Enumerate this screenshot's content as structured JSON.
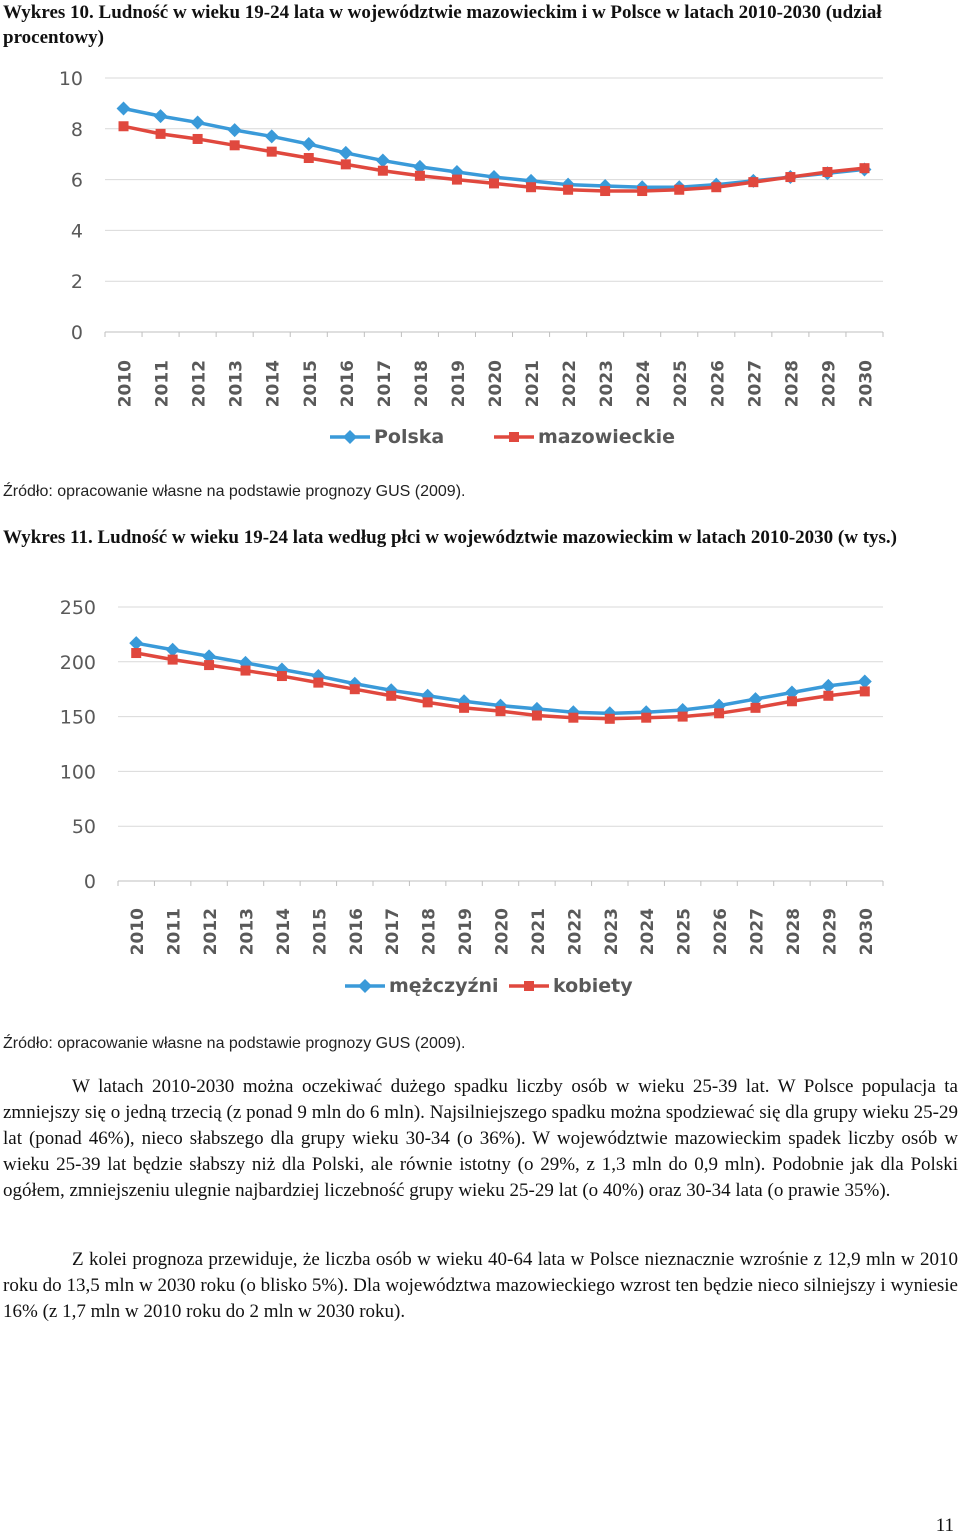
{
  "fig10": {
    "caption": "Wykres 10. Ludność w wieku 19-24 lata w województwie mazowieckim i w Polsce w latach 2010-2030 (udział procentowy)",
    "source": "Źródło: opracowanie własne na podstawie prognozy GUS (2009)."
  },
  "fig11": {
    "caption": "Wykres 11. Ludność w wieku 19-24 lata według płci w województwie mazowieckim w latach 2010-2030 (w tys.)",
    "source": "Źródło: opracowanie własne na podstawie prognozy GUS (2009)."
  },
  "body": {
    "p1": "W latach 2010-2030 można oczekiwać dużego spadku liczby osób w wieku 25-39 lat. W Polsce populacja ta zmniejszy się o jedną trzecią (z ponad 9 mln do 6 mln). Najsilniejszego spadku można spodziewać się dla grupy wieku 25-29 lat (ponad 46%), nieco słabszego dla grupy wieku 30-34 (o 36%). W województwie mazowieckim spadek liczby osób w wieku 25-39 lat będzie słabszy niż dla Polski, ale równie istotny (o 29%, z 1,3 mln do 0,9 mln). Podobnie jak dla Polski ogółem, zmniejszeniu ulegnie najbardziej liczebność grupy wieku 25-29 lat (o 40%) oraz 30-34 lata (o prawie 35%).",
    "p2": "Z kolei prognoza przewiduje, że liczba osób w wieku 40-64 lata w Polsce nieznacznie wzrośnie z 12,9 mln w 2010 roku do 13,5 mln w 2030 roku (o blisko 5%). Dla województwa mazowieckiego wzrost ten będzie nieco silniejszy i wyniesie 16% (z 1,7 mln w 2010 roku do 2 mln w 2030 roku)."
  },
  "page_number": "11",
  "colors": {
    "series_blue": "#3a9ad9",
    "series_red": "#e0483e",
    "grid": "#d9d9d9",
    "axis": "#bfbfbf",
    "tick_text": "#595959"
  },
  "chart_data": [
    {
      "type": "line",
      "title": "",
      "xlabel": "",
      "ylabel": "",
      "ylim": [
        0,
        10
      ],
      "yticks": [
        0,
        2,
        4,
        6,
        8,
        10
      ],
      "grid": true,
      "legend_position": "bottom",
      "categories": [
        "2010",
        "2011",
        "2012",
        "2013",
        "2014",
        "2015",
        "2016",
        "2017",
        "2018",
        "2019",
        "2020",
        "2021",
        "2022",
        "2023",
        "2024",
        "2025",
        "2026",
        "2027",
        "2028",
        "2029",
        "2030"
      ],
      "series": [
        {
          "name": "Polska",
          "color": "#3a9ad9",
          "marker": "diamond",
          "values": [
            8.8,
            8.5,
            8.25,
            7.95,
            7.7,
            7.4,
            7.05,
            6.75,
            6.5,
            6.3,
            6.1,
            5.95,
            5.8,
            5.75,
            5.7,
            5.7,
            5.8,
            5.95,
            6.1,
            6.25,
            6.4
          ]
        },
        {
          "name": "mazowieckie",
          "color": "#e0483e",
          "marker": "square",
          "values": [
            8.1,
            7.8,
            7.6,
            7.35,
            7.1,
            6.85,
            6.6,
            6.35,
            6.15,
            6.0,
            5.85,
            5.7,
            5.6,
            5.55,
            5.55,
            5.6,
            5.7,
            5.9,
            6.1,
            6.3,
            6.45
          ]
        }
      ]
    },
    {
      "type": "line",
      "title": "",
      "xlabel": "",
      "ylabel": "",
      "ylim": [
        0,
        250
      ],
      "yticks": [
        0,
        50,
        100,
        150,
        200,
        250
      ],
      "grid": true,
      "legend_position": "bottom",
      "categories": [
        "2010",
        "2011",
        "2012",
        "2013",
        "2014",
        "2015",
        "2016",
        "2017",
        "2018",
        "2019",
        "2020",
        "2021",
        "2022",
        "2023",
        "2024",
        "2025",
        "2026",
        "2027",
        "2028",
        "2029",
        "2030"
      ],
      "series": [
        {
          "name": "mężczyźni",
          "color": "#3a9ad9",
          "marker": "diamond",
          "values": [
            217,
            211,
            205,
            199,
            193,
            187,
            180,
            174,
            169,
            164,
            160,
            157,
            154,
            153,
            154,
            156,
            160,
            166,
            172,
            178,
            182
          ]
        },
        {
          "name": "kobiety",
          "color": "#e0483e",
          "marker": "square",
          "values": [
            208,
            202,
            197,
            192,
            187,
            181,
            175,
            169,
            163,
            158,
            155,
            151,
            149,
            148,
            149,
            150,
            153,
            158,
            164,
            169,
            173
          ]
        }
      ]
    }
  ]
}
